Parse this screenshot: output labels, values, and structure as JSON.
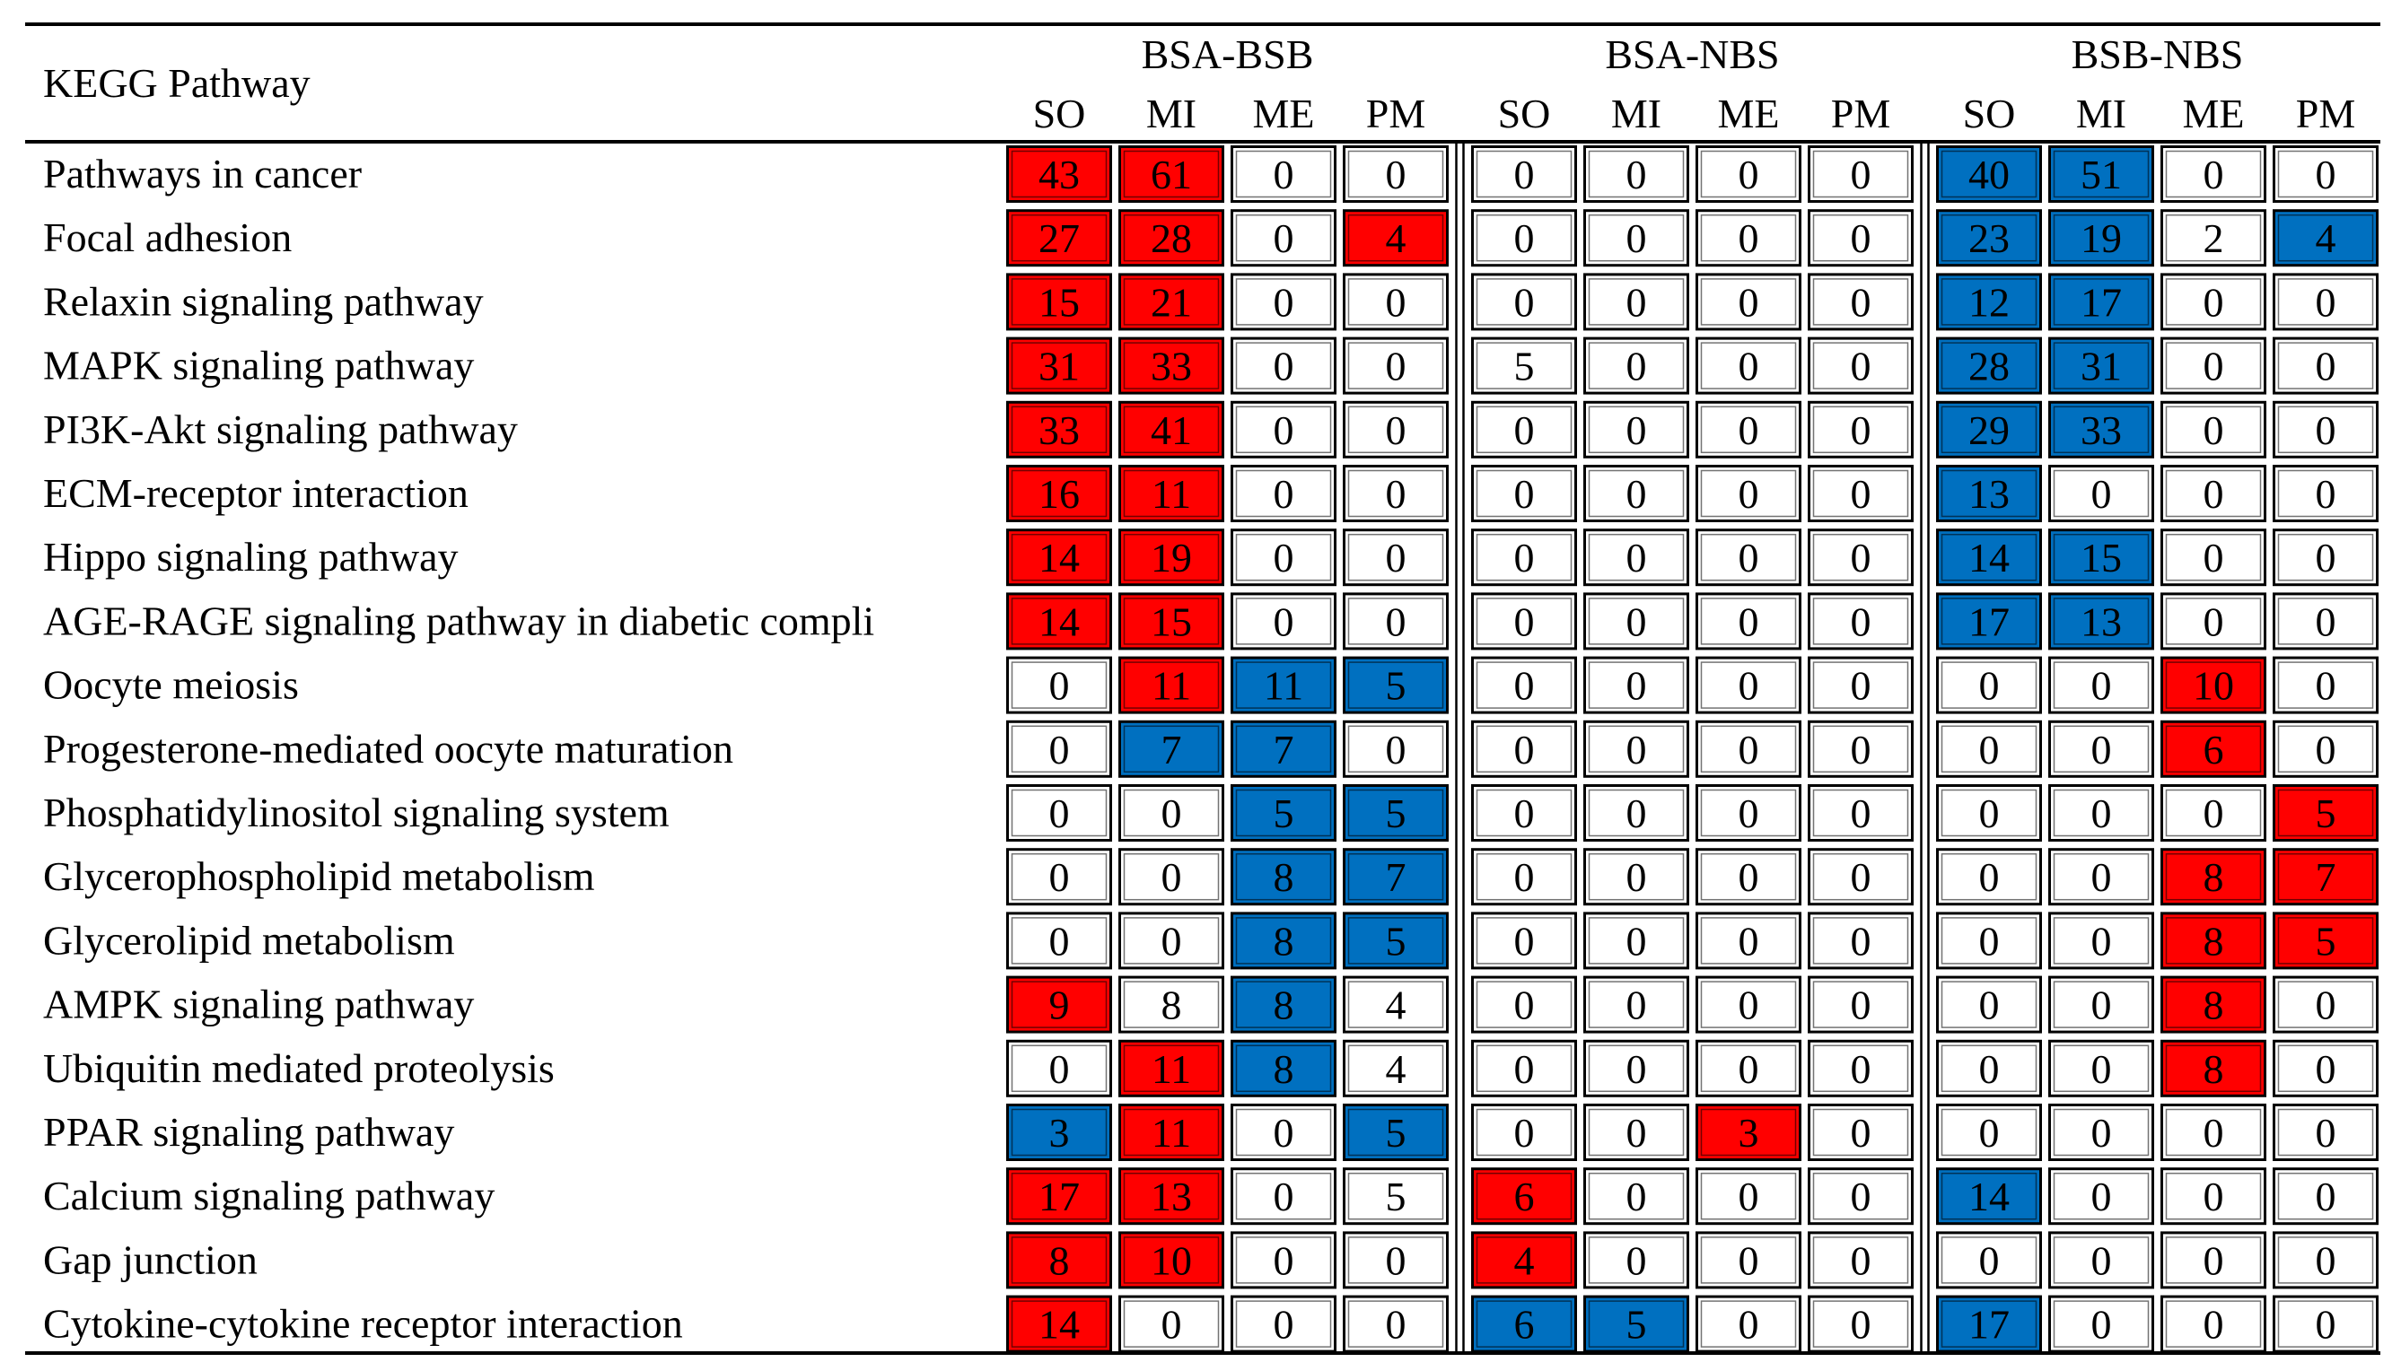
{
  "chart_data": {
    "type": "heatmap",
    "title": "",
    "row_header": "KEGG Pathway",
    "groups": [
      {
        "name": "BSA-BSB",
        "columns": [
          "SO",
          "MI",
          "ME",
          "PM"
        ]
      },
      {
        "name": "BSA-NBS",
        "columns": [
          "SO",
          "MI",
          "ME",
          "PM"
        ]
      },
      {
        "name": "BSB-NBS",
        "columns": [
          "SO",
          "MI",
          "ME",
          "PM"
        ]
      }
    ],
    "legend": {
      "up": "red",
      "down": "blue",
      "none": "white"
    },
    "rows": [
      {
        "label": "Pathways in cancer",
        "values": [
          43,
          61,
          0,
          0,
          0,
          0,
          0,
          0,
          40,
          51,
          0,
          0
        ],
        "colors": [
          "r",
          "r",
          "w",
          "w",
          "w",
          "w",
          "w",
          "w",
          "b",
          "b",
          "w",
          "w"
        ]
      },
      {
        "label": "Focal adhesion",
        "values": [
          27,
          28,
          0,
          4,
          0,
          0,
          0,
          0,
          23,
          19,
          2,
          4
        ],
        "colors": [
          "r",
          "r",
          "w",
          "r",
          "w",
          "w",
          "w",
          "w",
          "b",
          "b",
          "w",
          "b"
        ]
      },
      {
        "label": "Relaxin signaling pathway",
        "values": [
          15,
          21,
          0,
          0,
          0,
          0,
          0,
          0,
          12,
          17,
          0,
          0
        ],
        "colors": [
          "r",
          "r",
          "w",
          "w",
          "w",
          "w",
          "w",
          "w",
          "b",
          "b",
          "w",
          "w"
        ]
      },
      {
        "label": "MAPK signaling pathway",
        "values": [
          31,
          33,
          0,
          0,
          5,
          0,
          0,
          0,
          28,
          31,
          0,
          0
        ],
        "colors": [
          "r",
          "r",
          "w",
          "w",
          "w",
          "w",
          "w",
          "w",
          "b",
          "b",
          "w",
          "w"
        ]
      },
      {
        "label": "PI3K-Akt signaling pathway",
        "values": [
          33,
          41,
          0,
          0,
          0,
          0,
          0,
          0,
          29,
          33,
          0,
          0
        ],
        "colors": [
          "r",
          "r",
          "w",
          "w",
          "w",
          "w",
          "w",
          "w",
          "b",
          "b",
          "w",
          "w"
        ]
      },
      {
        "label": "ECM-receptor interaction",
        "values": [
          16,
          11,
          0,
          0,
          0,
          0,
          0,
          0,
          13,
          0,
          0,
          0
        ],
        "colors": [
          "r",
          "r",
          "w",
          "w",
          "w",
          "w",
          "w",
          "w",
          "b",
          "w",
          "w",
          "w"
        ]
      },
      {
        "label": "Hippo signaling pathway",
        "values": [
          14,
          19,
          0,
          0,
          0,
          0,
          0,
          0,
          14,
          15,
          0,
          0
        ],
        "colors": [
          "r",
          "r",
          "w",
          "w",
          "w",
          "w",
          "w",
          "w",
          "b",
          "b",
          "w",
          "w"
        ]
      },
      {
        "label": "AGE-RAGE signaling pathway in diabetic compli",
        "values": [
          14,
          15,
          0,
          0,
          0,
          0,
          0,
          0,
          17,
          13,
          0,
          0
        ],
        "colors": [
          "r",
          "r",
          "w",
          "w",
          "w",
          "w",
          "w",
          "w",
          "b",
          "b",
          "w",
          "w"
        ]
      },
      {
        "label": "Oocyte meiosis",
        "values": [
          0,
          11,
          11,
          5,
          0,
          0,
          0,
          0,
          0,
          0,
          10,
          0
        ],
        "colors": [
          "w",
          "r",
          "b",
          "b",
          "w",
          "w",
          "w",
          "w",
          "w",
          "w",
          "r",
          "w"
        ]
      },
      {
        "label": "Progesterone-mediated oocyte maturation",
        "values": [
          0,
          7,
          7,
          0,
          0,
          0,
          0,
          0,
          0,
          0,
          6,
          0
        ],
        "colors": [
          "w",
          "b",
          "b",
          "w",
          "w",
          "w",
          "w",
          "w",
          "w",
          "w",
          "r",
          "w"
        ]
      },
      {
        "label": "Phosphatidylinositol signaling system",
        "values": [
          0,
          0,
          5,
          5,
          0,
          0,
          0,
          0,
          0,
          0,
          0,
          5
        ],
        "colors": [
          "w",
          "w",
          "b",
          "b",
          "w",
          "w",
          "w",
          "w",
          "w",
          "w",
          "w",
          "r"
        ]
      },
      {
        "label": "Glycerophospholipid metabolism",
        "values": [
          0,
          0,
          8,
          7,
          0,
          0,
          0,
          0,
          0,
          0,
          8,
          7
        ],
        "colors": [
          "w",
          "w",
          "b",
          "b",
          "w",
          "w",
          "w",
          "w",
          "w",
          "w",
          "r",
          "r"
        ]
      },
      {
        "label": "Glycerolipid metabolism",
        "values": [
          0,
          0,
          8,
          5,
          0,
          0,
          0,
          0,
          0,
          0,
          8,
          5
        ],
        "colors": [
          "w",
          "w",
          "b",
          "b",
          "w",
          "w",
          "w",
          "w",
          "w",
          "w",
          "r",
          "r"
        ]
      },
      {
        "label": "AMPK signaling pathway",
        "values": [
          9,
          8,
          8,
          4,
          0,
          0,
          0,
          0,
          0,
          0,
          8,
          0
        ],
        "colors": [
          "r",
          "w",
          "b",
          "w",
          "w",
          "w",
          "w",
          "w",
          "w",
          "w",
          "r",
          "w"
        ]
      },
      {
        "label": "Ubiquitin mediated proteolysis",
        "values": [
          0,
          11,
          8,
          4,
          0,
          0,
          0,
          0,
          0,
          0,
          8,
          0
        ],
        "colors": [
          "w",
          "r",
          "b",
          "w",
          "w",
          "w",
          "w",
          "w",
          "w",
          "w",
          "r",
          "w"
        ]
      },
      {
        "label": "PPAR signaling pathway",
        "values": [
          3,
          11,
          0,
          5,
          0,
          0,
          3,
          0,
          0,
          0,
          0,
          0
        ],
        "colors": [
          "b",
          "r",
          "w",
          "b",
          "w",
          "w",
          "r",
          "w",
          "w",
          "w",
          "w",
          "w"
        ]
      },
      {
        "label": "Calcium signaling pathway",
        "values": [
          17,
          13,
          0,
          5,
          6,
          0,
          0,
          0,
          14,
          0,
          0,
          0
        ],
        "colors": [
          "r",
          "r",
          "w",
          "w",
          "r",
          "w",
          "w",
          "w",
          "b",
          "w",
          "w",
          "w"
        ]
      },
      {
        "label": "Gap junction",
        "values": [
          8,
          10,
          0,
          0,
          4,
          0,
          0,
          0,
          0,
          0,
          0,
          0
        ],
        "colors": [
          "r",
          "r",
          "w",
          "w",
          "r",
          "w",
          "w",
          "w",
          "w",
          "w",
          "w",
          "w"
        ]
      },
      {
        "label": "Cytokine-cytokine receptor interaction",
        "values": [
          14,
          0,
          0,
          0,
          6,
          5,
          0,
          0,
          17,
          0,
          0,
          0
        ],
        "colors": [
          "r",
          "w",
          "w",
          "w",
          "b",
          "b",
          "w",
          "w",
          "b",
          "w",
          "w",
          "w"
        ]
      }
    ]
  },
  "colors": {
    "r": "#ff0000",
    "b": "#0070c0",
    "w": "#ffffff"
  }
}
